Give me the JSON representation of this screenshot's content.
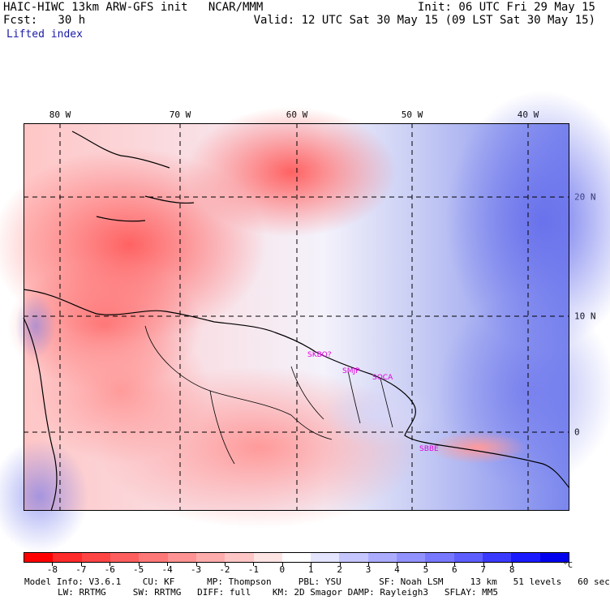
{
  "header": {
    "title": "HAIC-HIWC 13km ARW-GFS init   NCAR/MMM",
    "fcst": "Fcst:   30 h",
    "variable": "Lifted index",
    "init": "Init: 06 UTC Fri 29 May 15",
    "valid": "Valid: 12 UTC Sat 30 May 15 (09 LST Sat 30 May 15)"
  },
  "map": {
    "longitude_labels": [
      "80 W",
      "70 W",
      "60 W",
      "50 W",
      "40 W"
    ],
    "latitude_labels": [
      "20 N",
      "10 N",
      "0"
    ],
    "cities": [
      "SKBO?",
      "SMJP",
      "SOCA",
      "SBBE"
    ],
    "colors": {
      "coast": "#000000",
      "grid": "#000000"
    }
  },
  "colorbar": {
    "ticks": [
      "-8",
      "-7",
      "-6",
      "-5",
      "-4",
      "-3",
      "-2",
      "-1",
      "0",
      "1",
      "2",
      "3",
      "4",
      "5",
      "6",
      "7",
      "8"
    ],
    "unit": "°C",
    "colors": [
      "#ff0000",
      "#ff2a2a",
      "#ff4444",
      "#ff5e5e",
      "#ff7878",
      "#ff9292",
      "#ffacac",
      "#ffc6c6",
      "#ffe4e4",
      "#ffffff",
      "#e4e4ff",
      "#c6c6ff",
      "#acacff",
      "#9292ff",
      "#7878ff",
      "#5e5eff",
      "#3a3aff",
      "#1a1aff",
      "#0000ee"
    ]
  },
  "footer": {
    "line1": "Model Info: V3.6.1    CU: KF      MP: Thompson     PBL: YSU       SF: Noah LSM     13 km   51 levels   60 sec",
    "line2": "LW: RRTMG     SW: RRTMG   DIFF: full    KM: 2D Smagor DAMP: Rayleigh3   SFLAY: MM5"
  }
}
